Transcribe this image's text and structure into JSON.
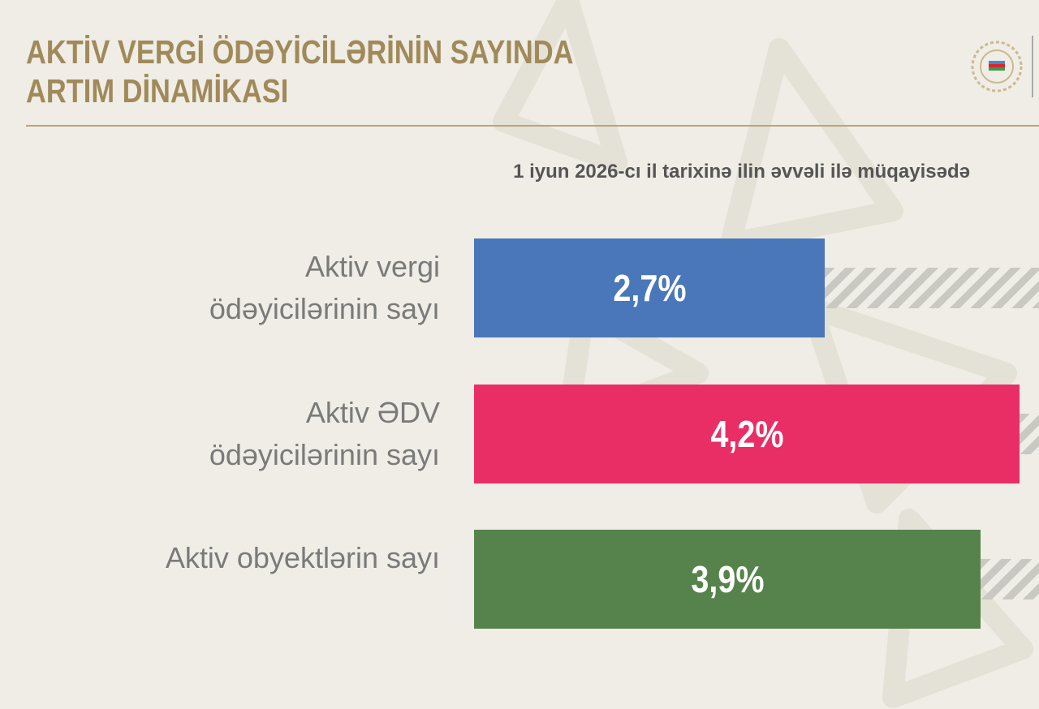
{
  "chart_data": {
    "type": "hbar",
    "title": "AKTİV VERGİ ÖDƏYİCİLƏRİNİN SAYINDA ARTIM DİNAMİKASI",
    "subtitle": "1 iyun 2026-cı il tarixinə ilin əvvəli ilə müqayisədə",
    "categories": [
      "Aktiv vergi ödəyicilərinin sayı",
      "Aktiv ƏDV ödəyicilərinin sayı",
      "Aktiv obyektlərin sayı"
    ],
    "values": [
      2.7,
      4.2,
      3.9
    ],
    "value_labels": [
      "2,7%",
      "4,2%",
      "3,9%"
    ],
    "colors": [
      "#4a77b9",
      "#e92e66",
      "#56834b"
    ],
    "xlim": [
      0,
      4.2
    ]
  }
}
